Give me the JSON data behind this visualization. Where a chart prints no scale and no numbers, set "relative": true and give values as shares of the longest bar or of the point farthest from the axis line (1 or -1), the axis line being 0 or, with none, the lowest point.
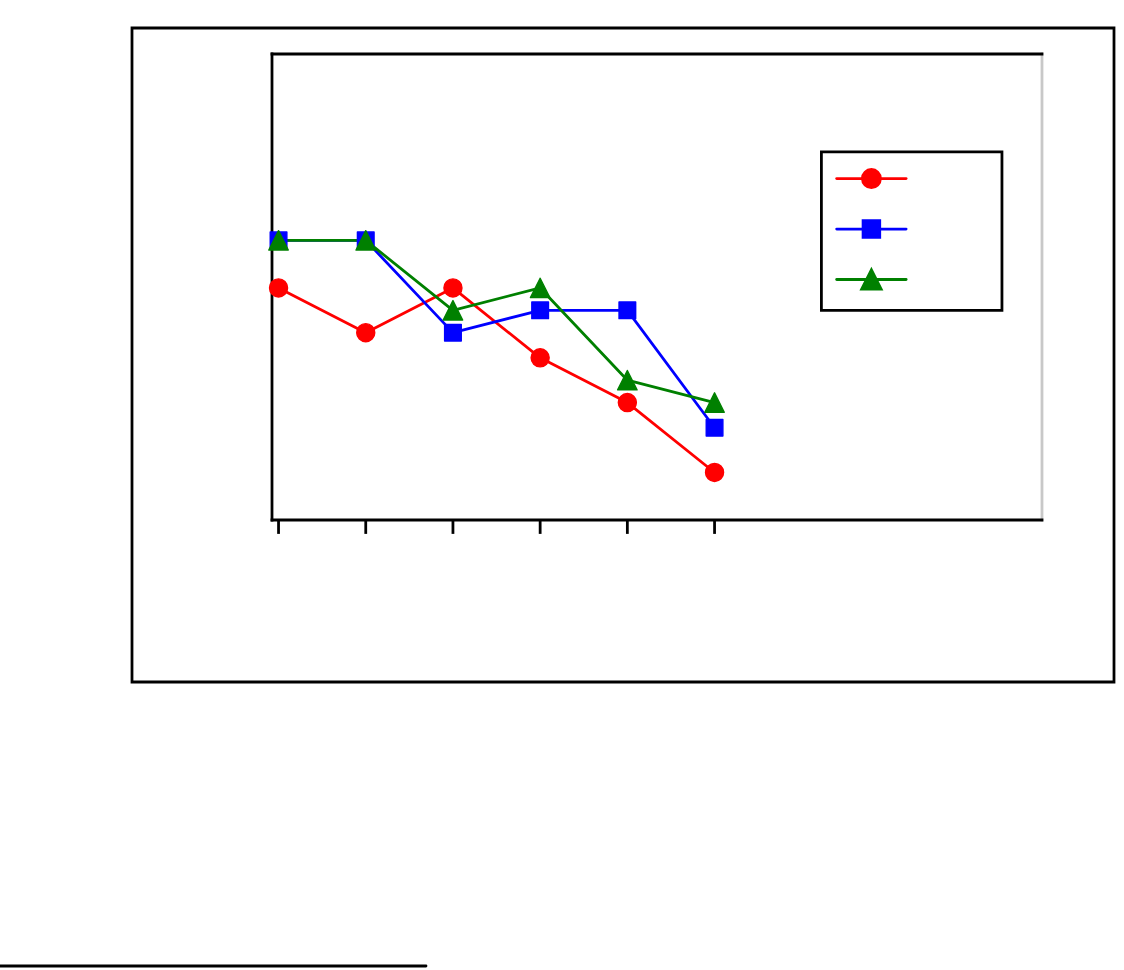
{
  "chart_data": {
    "type": "line",
    "relative": true,
    "line_style": "solid",
    "categories": [
      null,
      null,
      null,
      null,
      null,
      null
    ],
    "series": [
      {
        "color": "#ff0000",
        "marker": "circle",
        "values": [
          0.83,
          0.67,
          0.83,
          0.58,
          0.42,
          0.17
        ]
      },
      {
        "color": "#0000ff",
        "marker": "square",
        "values": [
          1,
          1,
          0.67,
          0.75,
          0.75,
          0.33
        ]
      },
      {
        "color": "#008000",
        "marker": "triangle",
        "values": [
          1,
          1,
          0.75,
          0.83,
          0.5,
          0.42
        ]
      }
    ]
  }
}
